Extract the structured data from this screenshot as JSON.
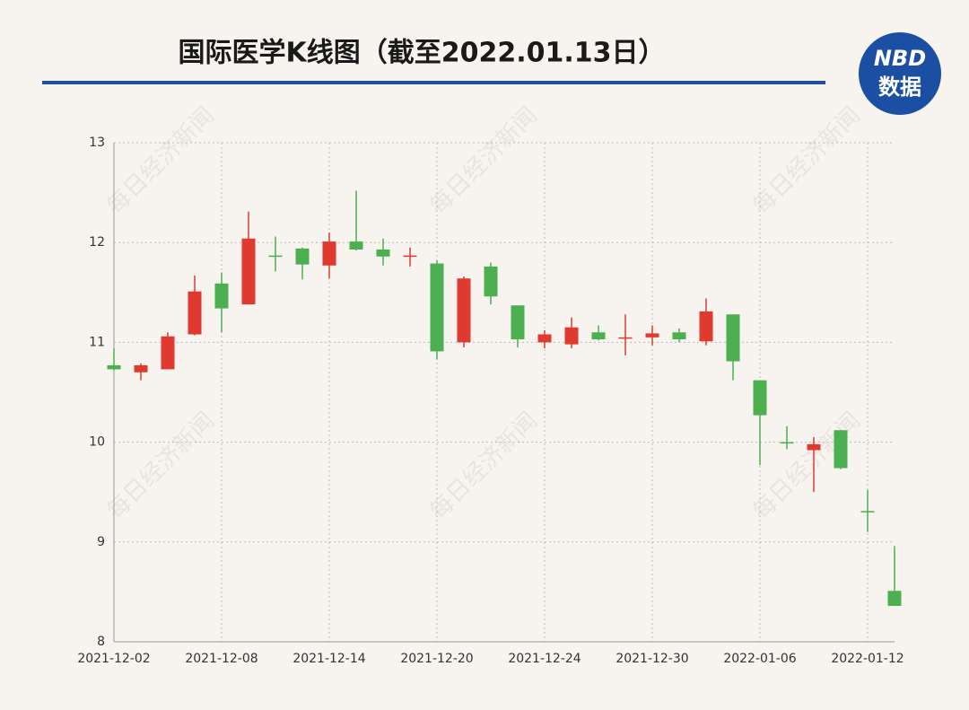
{
  "chart_data": {
    "type": "candlestick",
    "title": "国际医学K线图（截至2022.01.13日）",
    "logo": {
      "brand": "NBD",
      "label": "数据"
    },
    "watermark": "每日经济新闻",
    "categories": [
      "2021-12-02",
      null,
      null,
      null,
      "2021-12-08",
      null,
      null,
      null,
      "2021-12-14",
      null,
      null,
      null,
      "2021-12-20",
      null,
      null,
      null,
      "2021-12-24",
      null,
      null,
      null,
      "2021-12-30",
      null,
      null,
      null,
      "2022-01-06",
      null,
      null,
      null,
      "2022-01-12",
      null
    ],
    "open": [
      10.77,
      10.7,
      10.73,
      11.08,
      11.59,
      11.38,
      11.87,
      11.94,
      11.77,
      12.01,
      11.93,
      11.86,
      11.79,
      11.0,
      11.76,
      11.37,
      11.0,
      10.98,
      11.1,
      11.04,
      11.05,
      11.1,
      11.01,
      11.28,
      10.62,
      10.0,
      9.92,
      10.12,
      9.31,
      8.51
    ],
    "high": [
      10.94,
      10.79,
      11.1,
      11.67,
      11.7,
      12.31,
      12.06,
      11.95,
      12.1,
      12.52,
      12.04,
      11.95,
      11.82,
      11.66,
      11.8,
      11.37,
      11.12,
      11.25,
      11.17,
      11.28,
      11.17,
      11.14,
      11.44,
      11.28,
      10.62,
      10.16,
      10.05,
      10.12,
      9.52,
      8.96
    ],
    "low": [
      10.72,
      10.62,
      10.73,
      11.07,
      11.1,
      11.38,
      11.71,
      11.63,
      11.64,
      11.92,
      11.77,
      11.76,
      10.83,
      10.95,
      11.38,
      10.95,
      10.94,
      10.94,
      11.02,
      10.87,
      10.97,
      11.0,
      10.97,
      10.62,
      9.77,
      9.93,
      9.5,
      9.73,
      9.1,
      8.36
    ],
    "close": [
      10.73,
      10.77,
      11.06,
      11.51,
      11.34,
      12.04,
      11.86,
      11.78,
      12.01,
      11.93,
      11.86,
      11.87,
      10.91,
      11.64,
      11.46,
      11.03,
      11.08,
      11.15,
      11.03,
      11.05,
      11.09,
      11.03,
      11.31,
      10.81,
      10.27,
      9.99,
      9.98,
      9.74,
      9.3,
      8.36
    ],
    "up_color": "#e0392f",
    "down_color": "#4caf50",
    "ylim": [
      8,
      13
    ],
    "yticks": [
      8,
      9,
      10,
      11,
      12,
      13
    ],
    "grid": true
  }
}
